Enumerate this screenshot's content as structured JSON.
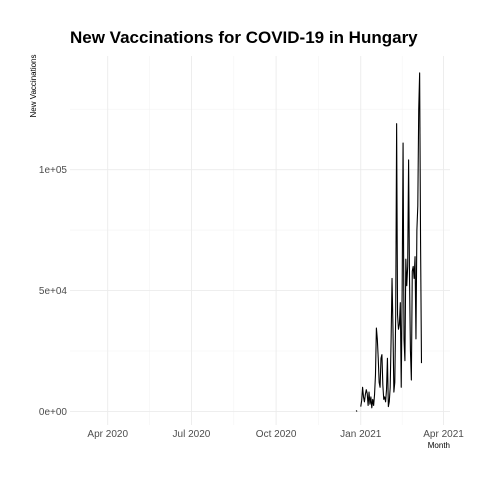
{
  "chart_data": {
    "type": "line",
    "title": "New Vaccinations for COVID-19 in Hungary",
    "xlabel": "Month",
    "ylabel": "New Vaccinations",
    "x_ticks": [
      "Apr 2020",
      "Jul 2020",
      "Oct 2020",
      "Jan 2021",
      "Apr 2021"
    ],
    "x_tick_dates": [
      "2020-04-01",
      "2020-07-01",
      "2020-10-01",
      "2021-01-01",
      "2021-04-01"
    ],
    "y_ticks": [
      "0e+00",
      "5e+04",
      "1e+05"
    ],
    "y_tick_values": [
      0,
      50000,
      100000
    ],
    "xlim": [
      "2020-02-20",
      "2021-04-08"
    ],
    "ylim": [
      -5600,
      147000
    ],
    "grid": true,
    "legend": "none",
    "series": [
      {
        "segments": [
          [
            [
              "2020-12-27",
              400
            ],
            [
              "2020-12-28",
              0
            ]
          ],
          [
            [
              "2021-01-01",
              2000
            ],
            [
              "2021-01-02",
              4500
            ],
            [
              "2021-01-03",
              10000
            ],
            [
              "2021-01-04",
              6000
            ],
            [
              "2021-01-05",
              4000
            ],
            [
              "2021-01-06",
              7000
            ],
            [
              "2021-01-07",
              9000
            ],
            [
              "2021-01-08",
              7500
            ],
            [
              "2021-01-09",
              2500
            ],
            [
              "2021-01-10",
              8000
            ],
            [
              "2021-01-11",
              3000
            ],
            [
              "2021-01-12",
              6000
            ],
            [
              "2021-01-13",
              1500
            ],
            [
              "2021-01-14",
              5000
            ],
            [
              "2021-01-15",
              2500
            ],
            [
              "2021-01-16",
              7000
            ],
            [
              "2021-01-17",
              15000
            ],
            [
              "2021-01-18",
              34500
            ],
            [
              "2021-01-19",
              30000
            ],
            [
              "2021-01-20",
              22000
            ],
            [
              "2021-01-21",
              12000
            ],
            [
              "2021-01-22",
              10000
            ],
            [
              "2021-01-23",
              22000
            ],
            [
              "2021-01-24",
              23500
            ],
            [
              "2021-01-25",
              11000
            ],
            [
              "2021-01-26",
              5000
            ],
            [
              "2021-01-27",
              6000
            ],
            [
              "2021-01-28",
              4000
            ],
            [
              "2021-01-29",
              9000
            ],
            [
              "2021-01-30",
              22000
            ],
            [
              "2021-01-31",
              2000
            ],
            [
              "2021-02-01",
              4000
            ],
            [
              "2021-02-02",
              10000
            ],
            [
              "2021-02-03",
              30000
            ],
            [
              "2021-02-04",
              55000
            ],
            [
              "2021-02-05",
              35000
            ],
            [
              "2021-02-06",
              8000
            ],
            [
              "2021-02-07",
              12000
            ],
            [
              "2021-02-08",
              40000
            ],
            [
              "2021-02-09",
              119000
            ],
            [
              "2021-02-10",
              40000
            ],
            [
              "2021-02-11",
              34000
            ],
            [
              "2021-02-12",
              36000
            ],
            [
              "2021-02-13",
              45000
            ],
            [
              "2021-02-14",
              10000
            ],
            [
              "2021-02-15",
              50000
            ],
            [
              "2021-02-16",
              111000
            ],
            [
              "2021-02-17",
              30000
            ],
            [
              "2021-02-18",
              21000
            ],
            [
              "2021-02-19",
              63000
            ],
            [
              "2021-02-20",
              52000
            ],
            [
              "2021-02-21",
              60000
            ],
            [
              "2021-02-22",
              104000
            ],
            [
              "2021-02-23",
              55000
            ],
            [
              "2021-02-24",
              25000
            ],
            [
              "2021-02-25",
              13000
            ],
            [
              "2021-02-26",
              58000
            ],
            [
              "2021-02-27",
              60000
            ],
            [
              "2021-02-28",
              55000
            ],
            [
              "2021-03-01",
              64000
            ],
            [
              "2021-03-02",
              30000
            ],
            [
              "2021-03-03",
              75000
            ],
            [
              "2021-03-04",
              85000
            ],
            [
              "2021-03-05",
              125000
            ],
            [
              "2021-03-06",
              140000
            ],
            [
              "2021-03-07",
              70000
            ],
            [
              "2021-03-08",
              20000
            ]
          ]
        ]
      }
    ]
  }
}
